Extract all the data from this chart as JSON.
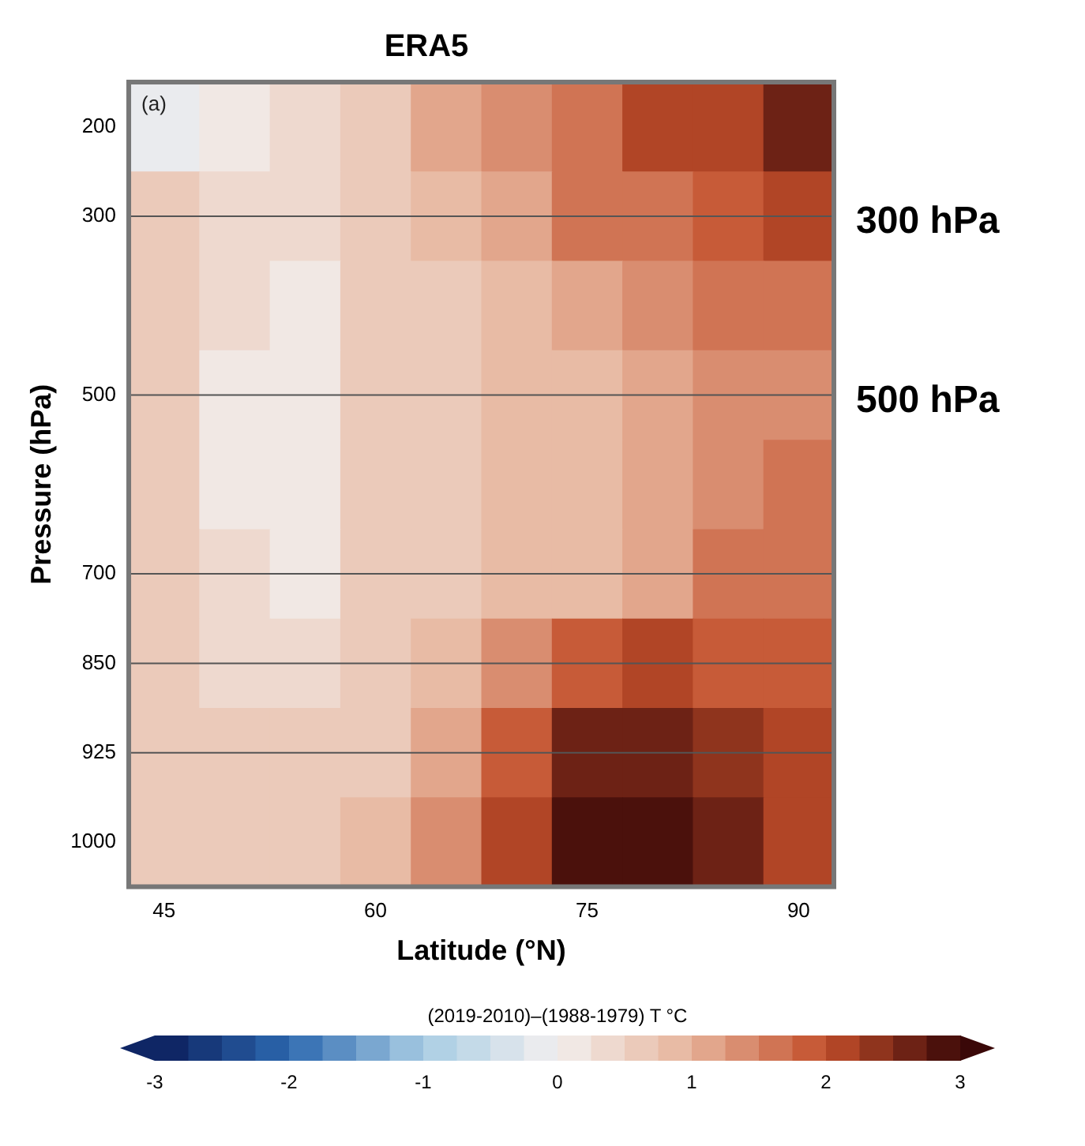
{
  "chart_data": {
    "type": "heatmap",
    "title": "ERA5",
    "xlabel": "Latitude (°N)",
    "ylabel": "Pressure (hPa)",
    "clabel": "(2019-2010)–(1988-1979) T °C",
    "categories": [
      "45",
      null,
      null,
      "60",
      null,
      null,
      "75",
      null,
      null,
      "90"
    ],
    "y_categories": [
      "200",
      "300",
      null,
      "500",
      null,
      "700",
      "850",
      "925",
      "1000"
    ],
    "cells": [
      [
        -0.2,
        0.2,
        0.3,
        0.7,
        1.0,
        1.4,
        1.7,
        2.0,
        2.2,
        2.6
      ],
      [
        0.5,
        0.4,
        0.3,
        0.6,
        0.8,
        1.2,
        1.5,
        1.7,
        1.9,
        2.1
      ],
      [
        0.5,
        0.3,
        0.1,
        0.5,
        0.7,
        0.9,
        1.2,
        1.4,
        1.5,
        1.6
      ],
      [
        0.5,
        0.2,
        0.1,
        0.5,
        0.7,
        0.8,
        0.9,
        1.1,
        1.3,
        1.4
      ],
      [
        0.5,
        0.2,
        0.1,
        0.5,
        0.7,
        0.8,
        0.9,
        1.0,
        1.3,
        1.5
      ],
      [
        0.5,
        0.3,
        0.1,
        0.5,
        0.7,
        0.8,
        0.9,
        1.1,
        1.5,
        1.7
      ],
      [
        0.6,
        0.4,
        0.3,
        0.6,
        0.9,
        1.3,
        1.8,
        2.0,
        1.9,
        1.9
      ],
      [
        0.6,
        0.5,
        0.5,
        0.7,
        1.1,
        1.8,
        2.5,
        2.6,
        2.3,
        2.0
      ],
      [
        0.6,
        0.5,
        0.5,
        0.8,
        1.3,
        2.0,
        2.8,
        2.9,
        2.5,
        2.1
      ]
    ],
    "clim": [
      -3,
      3
    ],
    "cticks": [
      -3,
      -2,
      -1,
      0,
      1,
      2,
      3
    ],
    "ref_lines": [
      {
        "axis": "y",
        "value": "300",
        "label": "300 hPa"
      },
      {
        "axis": "y",
        "value": "500",
        "label": "500 hPa"
      },
      {
        "axis": "y",
        "value": "700",
        "label": null
      },
      {
        "axis": "y",
        "value": "850",
        "label": null
      },
      {
        "axis": "y",
        "value": "925",
        "label": null
      }
    ],
    "annotations": [
      "(a)"
    ],
    "grid": false,
    "legend": false
  }
}
